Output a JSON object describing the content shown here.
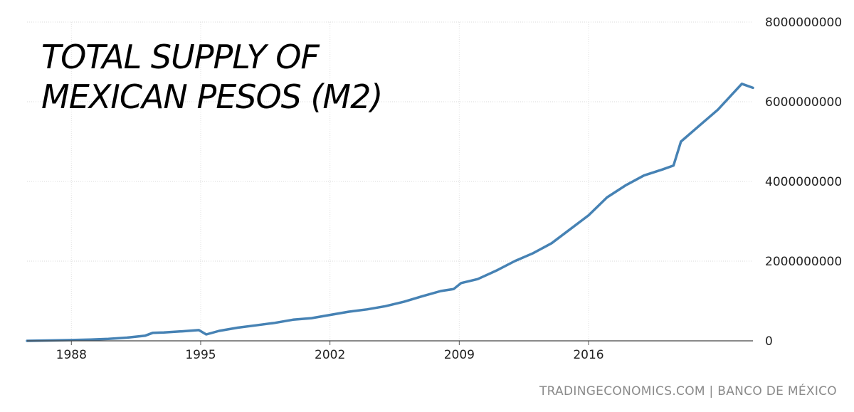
{
  "chart_data": {
    "type": "line",
    "title_lines": [
      "TOTAL SUPPLY OF",
      "MEXICAN PESOS (M2)"
    ],
    "xlabel": "",
    "ylabel": "",
    "xlim": [
      1985.6,
      2024.9
    ],
    "ylim": [
      0,
      8000000000
    ],
    "y_ticks": [
      {
        "value": 0,
        "label": "0"
      },
      {
        "value": 2000000000,
        "label": "2000000000"
      },
      {
        "value": 4000000000,
        "label": "4000000000"
      },
      {
        "value": 6000000000,
        "label": "6000000000"
      },
      {
        "value": 8000000000,
        "label": "8000000000"
      }
    ],
    "x_ticks": [
      {
        "value": 1988,
        "label": "1988"
      },
      {
        "value": 1995,
        "label": "1995"
      },
      {
        "value": 2002,
        "label": "2002"
      },
      {
        "value": 2009,
        "label": "2009"
      },
      {
        "value": 2016,
        "label": "2016"
      }
    ],
    "grid": true,
    "legend": "none",
    "line_color": "#4682b4",
    "series": [
      {
        "x": [
          1985.6,
          1987.0,
          1988.0,
          1989.0,
          1990.0,
          1991.0,
          1992.0,
          1992.4,
          1993.0,
          1994.0,
          1994.9,
          1995.3,
          1996.0,
          1997.0,
          1998.0,
          1999.0,
          2000.0,
          2001.0,
          2002.0,
          2003.0,
          2004.0,
          2005.0,
          2006.0,
          2007.0,
          2008.0,
          2008.7,
          2009.1,
          2010.0,
          2011.0,
          2012.0,
          2013.0,
          2014.0,
          2015.0,
          2016.0,
          2017.0,
          2018.0,
          2019.0,
          2020.0,
          2020.6,
          2021.0,
          2022.0,
          2023.0,
          2024.0,
          2024.3,
          2024.9
        ],
        "y": [
          0,
          10000000,
          20000000,
          30000000,
          50000000,
          80000000,
          130000000,
          200000000,
          210000000,
          240000000,
          270000000,
          160000000,
          250000000,
          330000000,
          390000000,
          450000000,
          530000000,
          570000000,
          650000000,
          730000000,
          790000000,
          870000000,
          980000000,
          1120000000,
          1250000000,
          1300000000,
          1450000000,
          1550000000,
          1760000000,
          2000000000,
          2200000000,
          2450000000,
          2800000000,
          3150000000,
          3600000000,
          3900000000,
          4150000000,
          4300000000,
          4400000000,
          5000000000,
          5400000000,
          5800000000,
          6300000000,
          6450000000,
          6350000000
        ]
      }
    ],
    "source": "TRADINGECONOMICS.COM | BANCO DE MÉXICO"
  }
}
